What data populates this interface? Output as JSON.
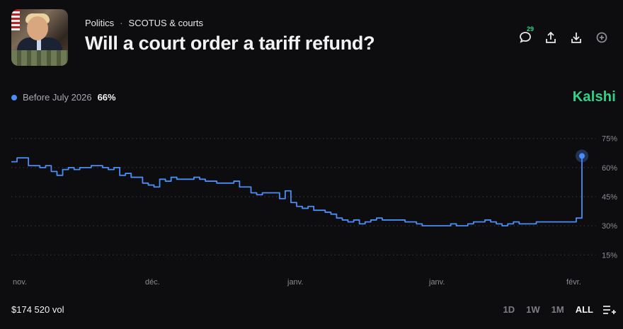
{
  "header": {
    "category": "Politics",
    "separator": "·",
    "subcategory": "SCOTUS & courts",
    "title": "Will a court order a tariff refund?"
  },
  "actions": {
    "comment_count": "29",
    "icons": [
      "comment-icon",
      "share-icon",
      "download-icon",
      "add-icon"
    ]
  },
  "legend": {
    "label": "Before July 2026",
    "value": "66%",
    "color": "#4a8df6"
  },
  "brand": {
    "name": "Kalshi",
    "color": "#2fd38a"
  },
  "footer": {
    "volume": "$174 520 vol",
    "ranges": [
      "1D",
      "1W",
      "1M",
      "ALL"
    ],
    "active_range": "ALL"
  },
  "chart_data": {
    "type": "line",
    "ylim": [
      10,
      80
    ],
    "y_ticks": [
      75,
      60,
      45,
      30,
      15
    ],
    "y_tick_labels": [
      "75%",
      "60%",
      "45%",
      "30%",
      "15%"
    ],
    "x_tick_labels": [
      "nov.",
      "déc.",
      "janv.",
      "janv.",
      "févr."
    ],
    "grid": true,
    "series": [
      {
        "color": "#4a8df6",
        "x": [
          0,
          1,
          2,
          3,
          4,
          5,
          6,
          7,
          8,
          9,
          10,
          11,
          12,
          13,
          14,
          15,
          16,
          17,
          18,
          19,
          20,
          21,
          22,
          23,
          24,
          25,
          26,
          27,
          28,
          29,
          30,
          31,
          32,
          33,
          34,
          35,
          36,
          37,
          38,
          39,
          40,
          41,
          42,
          43,
          44,
          45,
          46,
          47,
          48,
          49,
          50,
          51,
          52,
          53,
          54,
          55,
          56,
          57,
          58,
          59,
          60,
          61,
          62,
          63,
          64,
          65,
          66,
          67,
          68,
          69,
          70,
          71,
          72,
          73,
          74,
          75,
          76,
          77,
          78,
          79,
          80,
          81,
          82,
          83,
          84,
          85,
          86,
          87,
          88,
          89,
          90,
          91,
          92,
          93,
          94,
          95,
          96,
          97,
          98,
          99,
          100
        ],
        "values": [
          63,
          65,
          65,
          61,
          61,
          60,
          61,
          58,
          56,
          59,
          60,
          59,
          60,
          60,
          61,
          61,
          60,
          59,
          60,
          56,
          57,
          55,
          55,
          52,
          51,
          50,
          54,
          53,
          55,
          54,
          54,
          54,
          55,
          54,
          53,
          53,
          52,
          52,
          52,
          53,
          50,
          50,
          47,
          46,
          47,
          47,
          47,
          44,
          48,
          42,
          40,
          39,
          40,
          38,
          38,
          37,
          36,
          34,
          33,
          32,
          33,
          31,
          32,
          33,
          34,
          33,
          33,
          33,
          33,
          32,
          32,
          31,
          30,
          30,
          30,
          30,
          30,
          31,
          30,
          30,
          31,
          32,
          32,
          33,
          32,
          31,
          30,
          31,
          32,
          31,
          31,
          31,
          32,
          32,
          32,
          32,
          32,
          32,
          32,
          34,
          66
        ]
      }
    ]
  }
}
